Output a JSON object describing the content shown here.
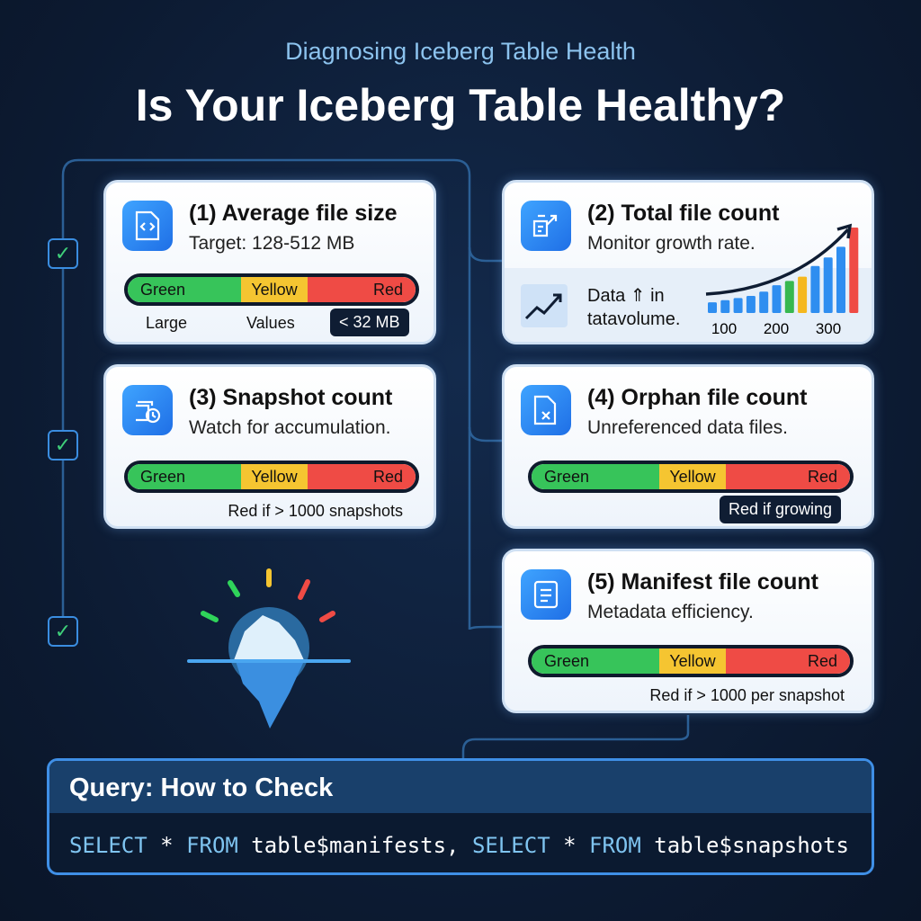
{
  "header": {
    "subtitle": "Diagnosing Iceberg Table Health",
    "title": "Is Your Iceberg Table Healthy?"
  },
  "cards": [
    {
      "title": "(1) Average file size",
      "subtitle": "Target: 128-512 MB",
      "gauge": [
        "Green",
        "Yellow",
        "Red"
      ],
      "notes": [
        "Large",
        "Values"
      ],
      "tag": "< 32 MB",
      "icon": "file-code-icon"
    },
    {
      "title": "(2) Total file count",
      "subtitle": "Monitor growth rate.",
      "inset": "Data ⇑ in tatavolume.",
      "icon": "file-growth-icon"
    },
    {
      "title": "(3) Snapshot count",
      "subtitle": "Watch for accumulation.",
      "gauge": [
        "Green",
        "Yellow",
        "Red"
      ],
      "note": "Red if > 1000 snapshots",
      "icon": "snapshot-history-icon"
    },
    {
      "title": "(4) Orphan file count",
      "subtitle": "Unreferenced data files.",
      "gauge": [
        "Green",
        "Yellow",
        "Red"
      ],
      "tag": "Red if growing",
      "icon": "file-x-icon"
    },
    {
      "title": "(5) Manifest file count",
      "subtitle": "Metadata efficiency.",
      "gauge": [
        "Green",
        "Yellow",
        "Red"
      ],
      "note": "Red if > 1000 per snapshot",
      "icon": "manifest-icon"
    }
  ],
  "chart_data": {
    "type": "bar",
    "values": [
      10,
      12,
      14,
      16,
      20,
      26,
      30,
      34,
      44,
      52,
      62,
      80
    ],
    "colors": [
      "#2f8ef0",
      "#2f8ef0",
      "#2f8ef0",
      "#2f8ef0",
      "#2f8ef0",
      "#2f8ef0",
      "#37b84f",
      "#f5b81f",
      "#2f8ef0",
      "#2f8ef0",
      "#2f8ef0",
      "#ef4b45"
    ],
    "tick_labels": [
      "100",
      "200",
      "300"
    ],
    "trend": "upward arrow"
  },
  "query": {
    "title": "Query: How to Check",
    "code": [
      {
        "kw": "SELECT"
      },
      {
        "t": " * "
      },
      {
        "kw": "FROM"
      },
      {
        "t": " table$manifests, "
      },
      {
        "kw": "SELECT"
      },
      {
        "t": " * "
      },
      {
        "kw": "FROM"
      },
      {
        "t": " table$snapshots"
      }
    ]
  },
  "colors": {
    "background": "#0c1a31",
    "accent": "#3f8fe6",
    "green": "#37c45a",
    "yellow": "#f5c531",
    "red": "#ef4b45"
  }
}
